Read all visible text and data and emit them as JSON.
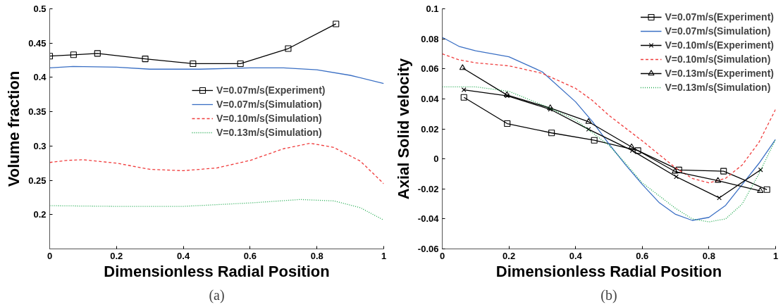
{
  "chart_data": [
    {
      "type": "line",
      "xlabel": "Dimensionless Radial Position",
      "ylabel": "Volume fraction",
      "annotations": [
        "(a)"
      ],
      "xlim": [
        0,
        1
      ],
      "ylim": [
        0.15,
        0.5
      ],
      "xticks": [
        0,
        0.2,
        0.4,
        0.6,
        0.8,
        1
      ],
      "yticks": [
        0.2,
        0.25,
        0.3,
        0.35,
        0.4,
        0.45,
        0.5
      ],
      "grid": false,
      "legend": "right",
      "series": [
        {
          "name": "V=0.07m/s(Experiment)",
          "color": "#000000",
          "marker": "square",
          "line_style": "solid",
          "x": [
            0,
            0.0714,
            0.143,
            0.286,
            0.429,
            0.571,
            0.714,
            0.857
          ],
          "values": [
            0.431,
            0.433,
            0.435,
            0.427,
            0.42,
            0.42,
            0.442,
            0.478
          ]
        },
        {
          "name": "V=0.07m/s(Simulation)",
          "color": "#3a6fc4",
          "marker": "none",
          "line_style": "solid",
          "x": [
            0,
            0.07,
            0.2,
            0.3,
            0.45,
            0.6,
            0.7,
            0.8,
            0.9,
            1
          ],
          "values": [
            0.414,
            0.416,
            0.415,
            0.412,
            0.412,
            0.414,
            0.414,
            0.411,
            0.403,
            0.391
          ]
        },
        {
          "name": "V=0.10m/s(Simulation)",
          "color": "#f03c3c",
          "marker": "none",
          "line_style": "dashed",
          "x": [
            0,
            0.05,
            0.1,
            0.2,
            0.3,
            0.4,
            0.5,
            0.6,
            0.7,
            0.78,
            0.85,
            0.93,
            1
          ],
          "values": [
            0.276,
            0.279,
            0.28,
            0.275,
            0.266,
            0.264,
            0.268,
            0.279,
            0.296,
            0.304,
            0.298,
            0.278,
            0.245
          ]
        },
        {
          "name": "V=0.13m/s(Simulation)",
          "color": "#1aa84a",
          "marker": "none",
          "line_style": "dotted",
          "x": [
            0,
            0.2,
            0.4,
            0.6,
            0.75,
            0.85,
            0.93,
            1
          ],
          "values": [
            0.213,
            0.212,
            0.212,
            0.217,
            0.222,
            0.22,
            0.21,
            0.192
          ]
        }
      ]
    },
    {
      "type": "line",
      "xlabel": "Dimensionless Radial Position",
      "ylabel": "Axial Solid velocity",
      "annotations": [
        "(b)"
      ],
      "xlim": [
        0,
        1
      ],
      "ylim": [
        -0.06,
        0.1
      ],
      "xticks": [
        0,
        0.2,
        0.4,
        0.6,
        0.8,
        1
      ],
      "yticks": [
        -0.06,
        -0.04,
        -0.02,
        0,
        0.02,
        0.04,
        0.06,
        0.08,
        0.1
      ],
      "grid": false,
      "legend": "top right",
      "series": [
        {
          "name": "V=0.07m/s(Experiment)",
          "color": "#000000",
          "marker": "square",
          "line_style": "solid",
          "x": [
            0.065,
            0.195,
            0.328,
            0.456,
            0.587,
            0.71,
            0.844,
            0.974
          ],
          "values": [
            0.041,
            0.0235,
            0.0173,
            0.0124,
            0.0055,
            -0.0074,
            -0.0082,
            -0.0205
          ]
        },
        {
          "name": "V=0.07m/s(Simulation)",
          "color": "#3a6fc4",
          "marker": "none",
          "line_style": "solid",
          "x": [
            0,
            0.05,
            0.1,
            0.2,
            0.3,
            0.4,
            0.45,
            0.5,
            0.55,
            0.6,
            0.65,
            0.7,
            0.75,
            0.8,
            0.85,
            0.9,
            0.95,
            1
          ],
          "values": [
            0.081,
            0.075,
            0.072,
            0.068,
            0.058,
            0.038,
            0.025,
            0.01,
            -0.004,
            -0.017,
            -0.029,
            -0.037,
            -0.041,
            -0.039,
            -0.031,
            -0.017,
            -0.003,
            0.013
          ]
        },
        {
          "name": "V=0.10m/s(Experiment)",
          "color": "#000000",
          "marker": "cross",
          "line_style": "solid",
          "x": [
            0.065,
            0.195,
            0.324,
            0.439,
            0.57,
            0.702,
            0.831,
            0.955
          ],
          "values": [
            0.046,
            0.042,
            0.033,
            0.0197,
            0.0055,
            -0.0119,
            -0.026,
            -0.0073
          ]
        },
        {
          "name": "V=0.10m/s(Simulation)",
          "color": "#f03c3c",
          "marker": "none",
          "line_style": "dashed",
          "x": [
            0,
            0.05,
            0.1,
            0.2,
            0.3,
            0.4,
            0.45,
            0.5,
            0.6,
            0.7,
            0.75,
            0.8,
            0.85,
            0.9,
            0.95,
            1
          ],
          "values": [
            0.07,
            0.066,
            0.064,
            0.062,
            0.057,
            0.047,
            0.039,
            0.029,
            0.012,
            -0.006,
            -0.013,
            -0.016,
            -0.013,
            -0.004,
            0.011,
            0.033
          ]
        },
        {
          "name": "V=0.13m/s(Experiment)",
          "color": "#000000",
          "marker": "triangle",
          "line_style": "solid",
          "x": [
            0.061,
            0.194,
            0.324,
            0.439,
            0.568,
            0.698,
            0.827,
            0.954
          ],
          "values": [
            0.0606,
            0.0426,
            0.0339,
            0.0247,
            0.0079,
            -0.0084,
            -0.0145,
            -0.0213
          ]
        },
        {
          "name": "V=0.13m/s(Simulation)",
          "color": "#1aa84a",
          "marker": "none",
          "line_style": "dotted",
          "x": [
            0,
            0.1,
            0.2,
            0.3,
            0.4,
            0.5,
            0.55,
            0.6,
            0.7,
            0.75,
            0.8,
            0.85,
            0.9,
            0.95,
            1
          ],
          "values": [
            0.048,
            0.048,
            0.045,
            0.036,
            0.026,
            0.009,
            -0.003,
            -0.016,
            -0.033,
            -0.04,
            -0.042,
            -0.04,
            -0.03,
            -0.01,
            0.013
          ]
        }
      ]
    }
  ]
}
